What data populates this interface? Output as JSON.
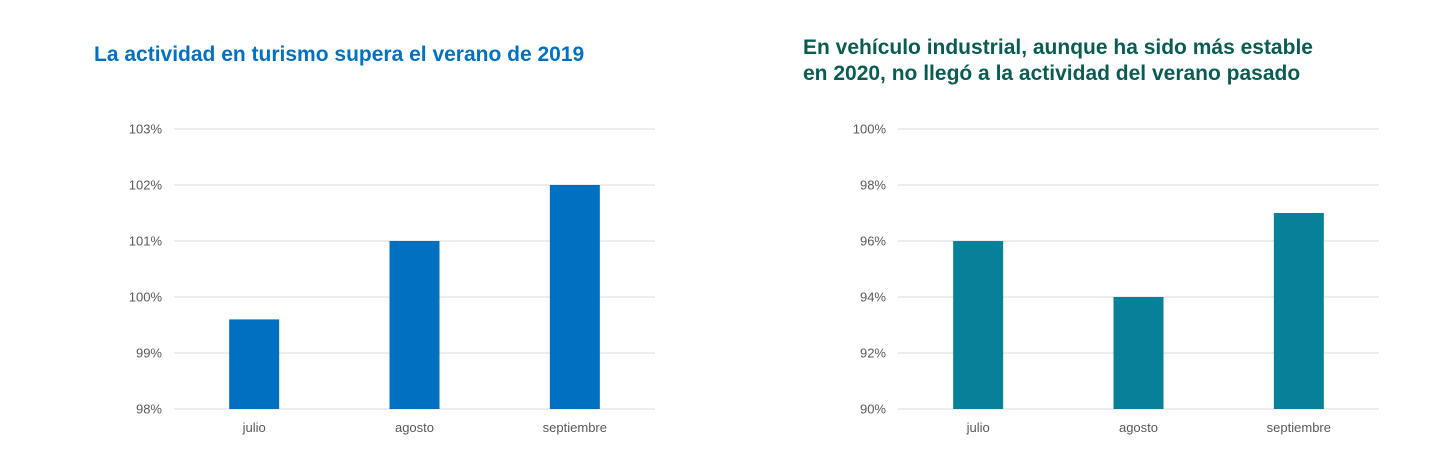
{
  "chart_data": [
    {
      "type": "bar",
      "title": "La actividad en turismo supera el verano de 2019",
      "xlabel": "",
      "ylabel": "",
      "categories": [
        "julio",
        "agosto",
        "septiembre"
      ],
      "values": [
        99.6,
        101,
        102
      ],
      "ylim": [
        98,
        103
      ],
      "yticks": [
        98,
        99,
        100,
        101,
        102,
        103
      ],
      "ytick_labels": [
        "98%",
        "99%",
        "100%",
        "101%",
        "102%",
        "103%"
      ],
      "grid": true,
      "legend": "none",
      "bar_color": "#0070C0",
      "title_color": "#0070C0"
    },
    {
      "type": "bar",
      "title": "En vehículo industrial, aunque ha sido más estable en 2020, no llegó a la actividad del verano pasado",
      "title_lines": [
        "En vehículo industrial, aunque ha sido más estable",
        "en 2020, no llegó a la actividad del verano pasado"
      ],
      "xlabel": "",
      "ylabel": "",
      "categories": [
        "julio",
        "agosto",
        "septiembre"
      ],
      "values": [
        96,
        94,
        97
      ],
      "ylim": [
        90,
        100
      ],
      "yticks": [
        90,
        92,
        94,
        96,
        98,
        100
      ],
      "ytick_labels": [
        "90%",
        "92%",
        "94%",
        "96%",
        "98%",
        "100%"
      ],
      "grid": true,
      "legend": "none",
      "bar_color": "#07809A",
      "title_color": "#0A5C52"
    }
  ]
}
